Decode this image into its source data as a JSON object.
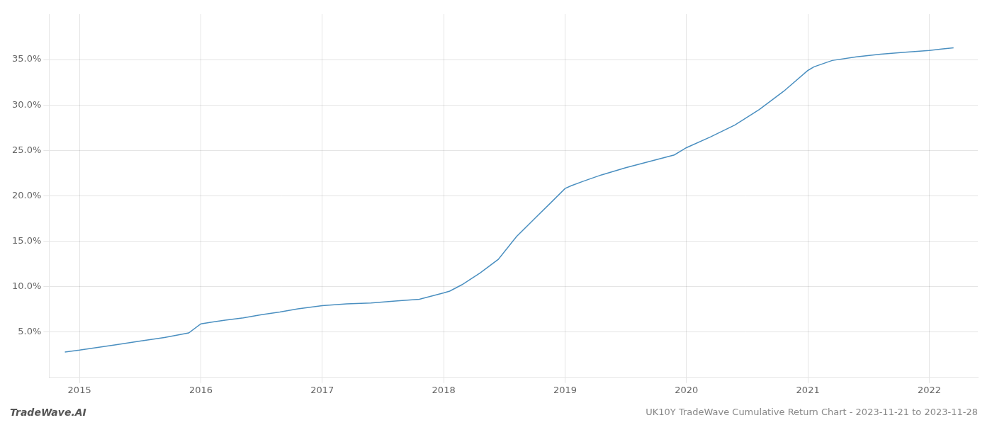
{
  "chart_data": {
    "type": "line",
    "title": "UK10Y TradeWave Cumulative Return Chart - 2023-11-21 to 2023-11-28",
    "annotations": [
      "TradeWave.AI"
    ],
    "color": "#4a8fc0",
    "x": [
      2014.88,
      2015.0,
      2015.1,
      2015.3,
      2015.5,
      2015.7,
      2015.9,
      2016.0,
      2016.1,
      2016.2,
      2016.35,
      2016.5,
      2016.65,
      2016.8,
      2017.0,
      2017.2,
      2017.4,
      2017.6,
      2017.8,
      2018.0,
      2018.05,
      2018.15,
      2018.3,
      2018.45,
      2018.6,
      2018.75,
      2018.88,
      2019.0,
      2019.05,
      2019.15,
      2019.3,
      2019.5,
      2019.7,
      2019.9,
      2020.0,
      2020.2,
      2020.4,
      2020.6,
      2020.8,
      2021.0,
      2021.05,
      2021.2,
      2021.4,
      2021.6,
      2021.8,
      2022.0,
      2022.1,
      2022.2
    ],
    "values": [
      2.8,
      3.0,
      3.2,
      3.6,
      4.0,
      4.4,
      4.9,
      5.9,
      6.1,
      6.3,
      6.55,
      6.9,
      7.2,
      7.55,
      7.9,
      8.1,
      8.2,
      8.4,
      8.6,
      9.3,
      9.5,
      10.2,
      11.5,
      13.0,
      15.5,
      17.5,
      19.2,
      20.8,
      21.1,
      21.6,
      22.3,
      23.1,
      23.8,
      24.5,
      25.3,
      26.5,
      27.8,
      29.5,
      31.5,
      33.8,
      34.2,
      34.9,
      35.3,
      35.6,
      35.8,
      36.0,
      36.15,
      36.3
    ],
    "xlim": [
      2014.75,
      2022.4
    ],
    "ylim": [
      0.0,
      40.0
    ],
    "xticks": [
      2015,
      2016,
      2017,
      2018,
      2019,
      2020,
      2021,
      2022
    ],
    "yticks": [
      {
        "value": 5.0,
        "label": "5.0%"
      },
      {
        "value": 10.0,
        "label": "10.0%"
      },
      {
        "value": 15.0,
        "label": "15.0%"
      },
      {
        "value": 20.0,
        "label": "20.0%"
      },
      {
        "value": 25.0,
        "label": "25.0%"
      },
      {
        "value": 30.0,
        "label": "30.0%"
      },
      {
        "value": 35.0,
        "label": "35.0%"
      }
    ],
    "grid": true
  }
}
